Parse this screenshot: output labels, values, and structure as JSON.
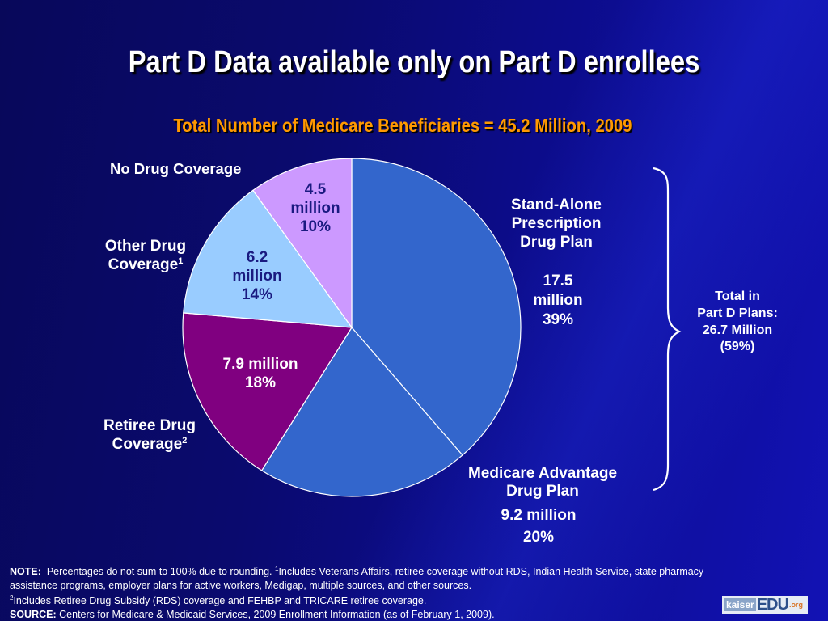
{
  "title": "Part D Data available only on Part D enrollees",
  "chart_data": {
    "type": "pie",
    "title": "Total Number of Medicare Beneficiaries = 45.2 Million, 2009",
    "start_angle": "12 o'clock",
    "direction": "clockwise",
    "unit": "million",
    "slices": [
      {
        "label": "Stand-Alone Prescription Drug Plan",
        "value": 17.5,
        "value_label": "17.5 million",
        "percent": 39,
        "percent_label": "39%",
        "color": "#3366cc"
      },
      {
        "label": "Medicare Advantage Drug Plan",
        "value": 9.2,
        "value_label": "9.2 million",
        "percent": 20,
        "percent_label": "20%",
        "color": "#3366cc"
      },
      {
        "label": "Retiree Drug Coverage",
        "footnote": "2",
        "value": 7.9,
        "value_label": "7.9 million",
        "percent": 18,
        "percent_label": "18%",
        "color": "#800080"
      },
      {
        "label": "Other Drug Coverage",
        "footnote": "1",
        "value": 6.2,
        "value_label": "6.2 million",
        "percent": 14,
        "percent_label": "14%",
        "color": "#99ccff"
      },
      {
        "label": "No Drug Coverage",
        "value": 4.5,
        "value_label": "4.5 million",
        "percent": 10,
        "percent_label": "10%",
        "color": "#cc99ff"
      }
    ],
    "annotation": {
      "line1": "Total in",
      "line2": "Part D Plans:",
      "line3": "26.7 Million",
      "line4": "(59%)"
    }
  },
  "labels": {
    "sa_l1": "Stand-Alone",
    "sa_l2": "Prescription",
    "sa_l3": "Drug Plan",
    "sa_v1": "17.5",
    "sa_v2": "million",
    "sa_p": "39%",
    "ma_l1": "Medicare Advantage",
    "ma_l2": "Drug Plan",
    "ma_v": "9.2 million",
    "ma_p": "20%",
    "ret_l1": "Retiree Drug",
    "ret_l2": "Coverage",
    "ret_sup": "2",
    "ret_v": "7.9 million",
    "ret_p": "18%",
    "oth_l1": "Other Drug",
    "oth_l2": "Coverage",
    "oth_sup": "1",
    "oth_v1": "6.2",
    "oth_v2": "million",
    "oth_p": "14%",
    "no_l": "No Drug Coverage",
    "no_v1": "4.5",
    "no_v2": "million",
    "no_p": "10%"
  },
  "notes": {
    "note_label": "NOTE:",
    "note_text": "Percentages do not sum to 100% due to rounding.",
    "fn1_mark": "1",
    "fn1_text": "Includes Veterans Affairs, retiree coverage without RDS, Indian Health Service, state pharmacy assistance programs, employer plans for active workers, Medigap, multiple sources, and other sources.",
    "fn2_mark": "2",
    "fn2_text": "Includes Retiree Drug Subsidy (RDS) coverage and FEHBP and TRICARE retiree coverage.",
    "source_label": "SOURCE:",
    "source_text": "Centers for Medicare & Medicaid Services, 2009 Enrollment Information (as of February 1, 2009)."
  },
  "logo": {
    "part1": "kaiser",
    "part2": "EDU",
    "part3": ".org"
  }
}
